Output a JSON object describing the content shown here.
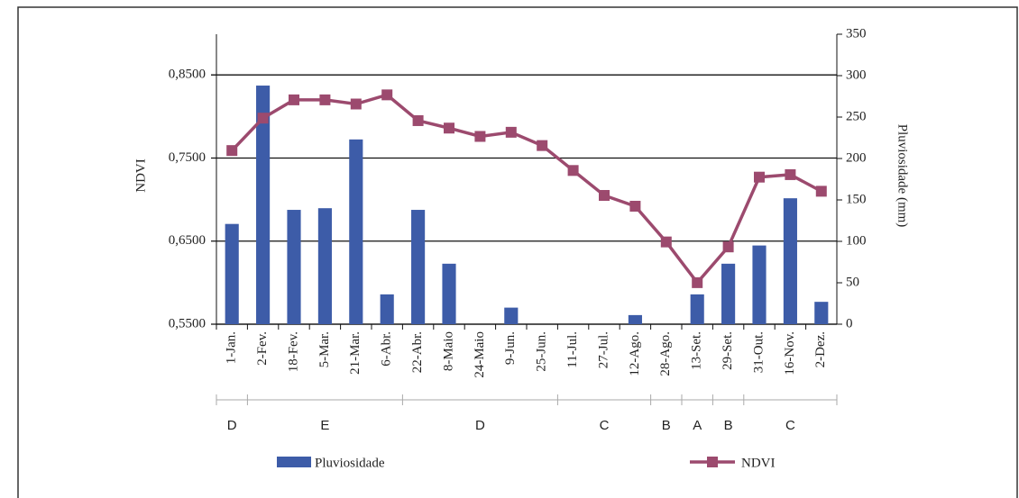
{
  "chart_data": {
    "type": "bar-line",
    "categories": [
      "1-Jan.",
      "2-Fev.",
      "18-Fev.",
      "5-Mar.",
      "21-Mar.",
      "6-Abr.",
      "22-Abr.",
      "8-Maio",
      "24-Maio",
      "9-Jun.",
      "25-Jun.",
      "11-Jul.",
      "27-Jul.",
      "12-Ago.",
      "28-Ago.",
      "13-Set.",
      "29-Set.",
      "31-Out.",
      "16-Nov.",
      "2-Dez."
    ],
    "series": [
      {
        "name": "Pluviosidade",
        "type": "bar",
        "axis": "y2",
        "color": "#3d5ca8",
        "values": [
          121,
          288,
          138,
          140,
          223,
          36,
          138,
          73,
          0,
          20,
          0,
          0,
          0,
          11,
          0,
          36,
          73,
          95,
          152,
          27
        ]
      },
      {
        "name": "NDVI",
        "type": "line",
        "axis": "y",
        "color": "#9c4a6e",
        "values": [
          0.759,
          0.798,
          0.82,
          0.82,
          0.815,
          0.826,
          0.795,
          0.786,
          0.776,
          0.781,
          0.765,
          0.735,
          0.705,
          0.692,
          0.649,
          0.6,
          0.643,
          0.727,
          0.73,
          0.71
        ]
      }
    ],
    "ylabel": "NDVI",
    "y2label": "Pluviosidade (mm)",
    "ylim": [
      0.55,
      0.899
    ],
    "yticks": [
      {
        "value": 0.55,
        "label": "0,5500"
      },
      {
        "value": 0.65,
        "label": "0,6500"
      },
      {
        "value": 0.75,
        "label": "0,7500"
      },
      {
        "value": 0.85,
        "label": "0,8500"
      }
    ],
    "y2lim": [
      0,
      350
    ],
    "y2ticks": [
      0,
      50,
      100,
      150,
      200,
      250,
      300,
      350
    ],
    "grid": true,
    "zones": [
      {
        "label": "D",
        "span": 1
      },
      {
        "label": "E",
        "span": 5
      },
      {
        "label": "D",
        "span": 5
      },
      {
        "label": "C",
        "span": 3
      },
      {
        "label": "B",
        "span": 1
      },
      {
        "label": "A",
        "span": 1
      },
      {
        "label": "B",
        "span": 1
      },
      {
        "label": "C",
        "span": 3
      }
    ]
  }
}
